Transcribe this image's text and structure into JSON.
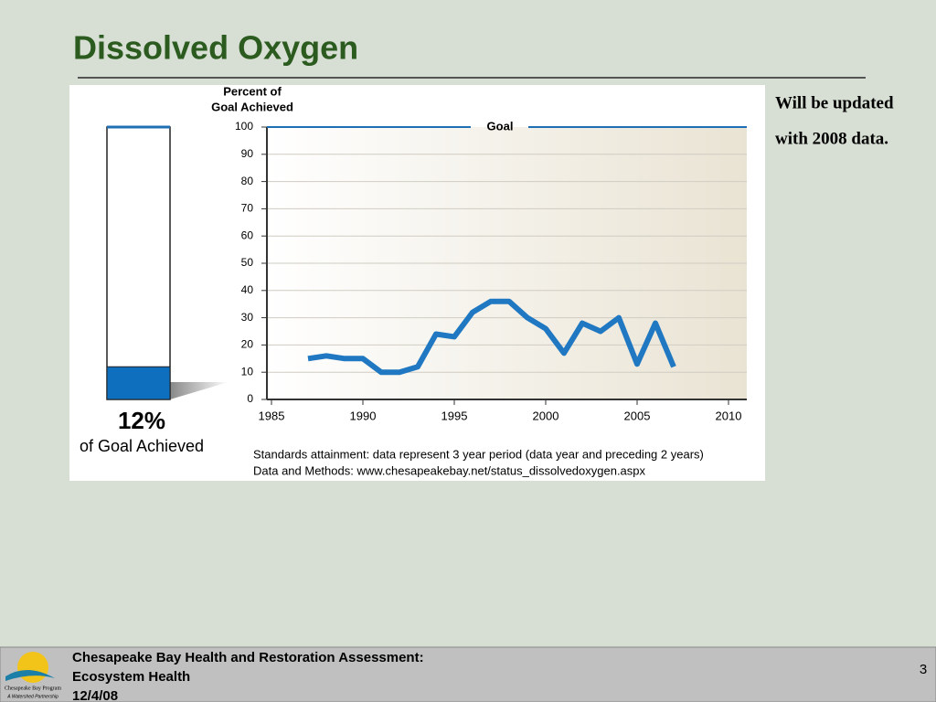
{
  "slide_title": "Dissolved Oxygen",
  "side_note": [
    "Will be updated",
    "with 2008 data."
  ],
  "footer": {
    "lines": [
      "Chesapeake Bay Health and Restoration Assessment:",
      "Ecosystem Health",
      "12/4/08"
    ],
    "page": "3",
    "logo_text": [
      "Chesapeake Bay Program",
      "A Watershed Partnership"
    ]
  },
  "chart_data": [
    {
      "type": "line",
      "y_label": [
        "Percent of",
        "Goal Achieved"
      ],
      "color": "#1f78c1",
      "x": [
        1987,
        1988,
        1989,
        1990,
        1991,
        1992,
        1993,
        1994,
        1995,
        1996,
        1997,
        1998,
        1999,
        2000,
        2001,
        2002,
        2003,
        2004,
        2005,
        2006,
        2007
      ],
      "values": [
        15,
        16,
        15,
        15,
        10,
        10,
        12,
        24,
        23,
        32,
        36,
        36,
        30,
        26,
        17,
        28,
        25,
        30,
        13,
        28,
        12
      ],
      "xlim": [
        1985,
        2011
      ],
      "xticks": [
        1985,
        1990,
        1995,
        2000,
        2005,
        2010
      ],
      "ylim": [
        0,
        100
      ],
      "yticks": [
        0,
        10,
        20,
        30,
        40,
        50,
        60,
        70,
        80,
        90,
        100
      ],
      "grid": true,
      "goal": {
        "value": 100,
        "label": "Goal"
      },
      "notes": [
        "Standards attainment: data represent 3 year period (data year and preceding 2 years)",
        "Data and Methods: www.chesapeakebay.net/status_dissolvedoxygen.aspx"
      ]
    },
    {
      "type": "bar",
      "values": [
        12
      ],
      "value_labels": [
        "12%"
      ],
      "caption": "of Goal Achieved",
      "color": "#0f6fbf",
      "ylim": [
        0,
        100
      ]
    }
  ]
}
